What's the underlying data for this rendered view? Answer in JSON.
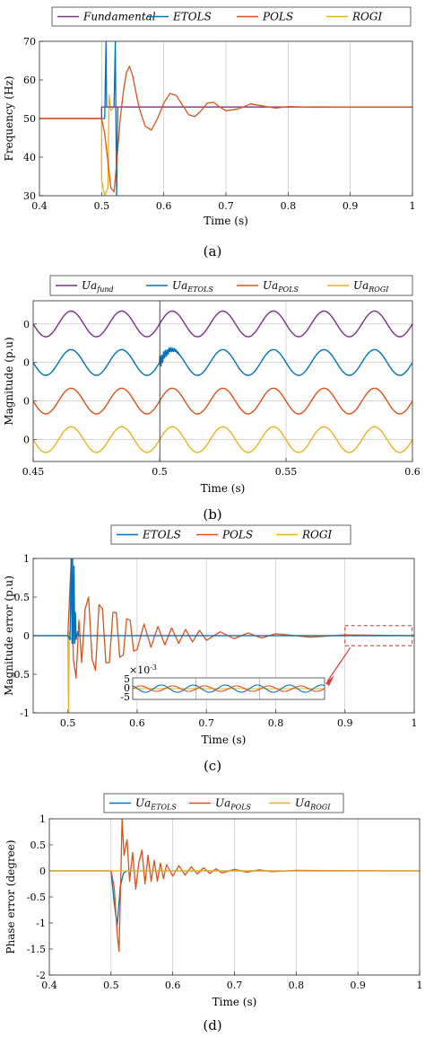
{
  "chart_data": [
    {
      "id": "a",
      "type": "line",
      "caption": "(a)",
      "xlabel": "Time (s)",
      "ylabel": "Frequency (Hz)",
      "xlim": [
        0.4,
        1.0
      ],
      "ylim": [
        30,
        70
      ],
      "xticks": [
        "0.4",
        "0.5",
        "0.6",
        "0.7",
        "0.8",
        "0.9",
        "1"
      ],
      "yticks": [
        "30",
        "40",
        "50",
        "60",
        "70"
      ],
      "grid": true,
      "legend_position": "top",
      "series": [
        {
          "name": "Fundamental",
          "color": "#7e2f8e",
          "x": [
            0.4,
            0.5,
            0.5,
            1.0
          ],
          "y": [
            50,
            50,
            53,
            53
          ]
        },
        {
          "name": "ETOLS",
          "color": "#0072bd",
          "x": [
            0.4,
            0.505,
            0.507,
            0.508,
            0.515,
            0.52,
            0.522,
            0.524,
            0.526,
            0.53,
            1.0
          ],
          "y": [
            50,
            50,
            70,
            53,
            53,
            53,
            70,
            30,
            53,
            53,
            53
          ]
        },
        {
          "name": "POLS",
          "color": "#d95319",
          "x": [
            0.4,
            0.5,
            0.505,
            0.51,
            0.515,
            0.52,
            0.525,
            0.53,
            0.535,
            0.54,
            0.545,
            0.55,
            0.56,
            0.57,
            0.58,
            0.59,
            0.6,
            0.61,
            0.62,
            0.63,
            0.64,
            0.65,
            0.66,
            0.67,
            0.68,
            0.69,
            0.7,
            0.72,
            0.74,
            0.76,
            0.78,
            0.8,
            0.84,
            0.9,
            1.0
          ],
          "y": [
            50,
            50,
            46,
            39,
            32,
            31,
            40,
            50,
            57,
            62,
            63.5,
            61,
            53,
            48,
            47,
            50,
            54,
            56.5,
            56,
            53.5,
            51,
            50.5,
            52,
            54,
            54.2,
            53,
            52,
            52.5,
            53.8,
            53.2,
            52.7,
            53.1,
            52.9,
            53,
            53
          ]
        },
        {
          "name": "ROGI",
          "color": "#edb120",
          "x": [
            0.4,
            0.5,
            0.5,
            0.505,
            0.51,
            0.512,
            0.515,
            0.52,
            0.525,
            0.53,
            1.0
          ],
          "y": [
            50,
            50,
            34,
            30,
            32,
            56,
            52,
            53,
            53,
            53,
            53
          ]
        }
      ]
    },
    {
      "id": "b",
      "type": "line",
      "caption": "(b)",
      "xlabel": "Time (s)",
      "ylabel": "Magnitude (p.u)",
      "xlim": [
        0.45,
        0.6
      ],
      "xticks": [
        "0.45",
        "0.5",
        "0.55",
        "0.6"
      ],
      "yticks": [
        "0",
        "0",
        "0",
        "0"
      ],
      "grid": true,
      "legend_position": "top",
      "waveform": {
        "frequency_hz": 50,
        "amplitude": 1,
        "offsets": [
          7.5,
          4.5,
          1.5,
          -1.5
        ],
        "ylim": [
          -3.2,
          9.3
        ]
      },
      "series": [
        {
          "name": "Ua_fund",
          "legend_main": "Ua",
          "legend_sub": "fund",
          "color": "#7e2f8e"
        },
        {
          "name": "Ua_ETOLS",
          "legend_main": "Ua",
          "legend_sub": "ETOLS",
          "color": "#0072bd"
        },
        {
          "name": "Ua_POLS",
          "legend_main": "Ua",
          "legend_sub": "POLS",
          "color": "#d95319"
        },
        {
          "name": "Ua_ROGI",
          "legend_main": "Ua",
          "legend_sub": "ROGI",
          "color": "#edb120"
        }
      ]
    },
    {
      "id": "c",
      "type": "line",
      "caption": "(c)",
      "xlabel": "Time (s)",
      "ylabel": "Magnitude error (p.u)",
      "xlim": [
        0.45,
        1.0
      ],
      "ylim": [
        -1,
        1
      ],
      "xticks": [
        "0.5",
        "0.6",
        "0.7",
        "0.8",
        "0.9",
        "1"
      ],
      "yticks": [
        "-1",
        "-0.5",
        "0",
        "0.5",
        "1"
      ],
      "grid": true,
      "legend_position": "top",
      "series": [
        {
          "name": "ETOLS",
          "color": "#0072bd",
          "x": [
            0.45,
            0.5,
            0.503,
            0.505,
            0.506,
            0.507,
            0.508,
            0.509,
            0.51,
            0.511,
            0.512,
            0.514,
            0.516,
            1.0
          ],
          "y": [
            0,
            0,
            -0.05,
            1,
            -0.1,
            1,
            -0.1,
            0.9,
            -0.1,
            0.3,
            -0.05,
            0.05,
            0,
            0
          ]
        },
        {
          "name": "POLS",
          "color": "#d95319",
          "x": [
            0.45,
            0.5,
            0.505,
            0.508,
            0.512,
            0.516,
            0.52,
            0.525,
            0.53,
            0.535,
            0.54,
            0.545,
            0.55,
            0.555,
            0.56,
            0.565,
            0.57,
            0.575,
            0.58,
            0.585,
            0.59,
            0.595,
            0.6,
            0.61,
            0.62,
            0.63,
            0.64,
            0.65,
            0.66,
            0.67,
            0.68,
            0.69,
            0.7,
            0.72,
            0.74,
            0.76,
            0.78,
            0.8,
            0.85,
            0.9,
            1.0
          ],
          "y": [
            0,
            0,
            1,
            -0.3,
            -0.55,
            0.2,
            -0.35,
            0.35,
            0.5,
            -0.3,
            -0.45,
            0.4,
            0.35,
            -0.35,
            -0.35,
            0.3,
            0.3,
            -0.28,
            -0.25,
            0.22,
            0.2,
            -0.2,
            -0.18,
            0.15,
            -0.15,
            0.12,
            -0.12,
            0.1,
            -0.1,
            0.08,
            -0.08,
            0.07,
            -0.06,
            0.05,
            -0.04,
            0.035,
            -0.03,
            0.025,
            -0.02,
            0.01,
            0
          ]
        },
        {
          "name": "ROGI",
          "color": "#edb120",
          "x": [
            0.45,
            0.5,
            0.501,
            0.502,
            0.504,
            0.508,
            1.0
          ],
          "y": [
            0,
            0,
            -1,
            0.05,
            -0.05,
            0,
            0
          ]
        }
      ],
      "inset": {
        "multiplier": "×10",
        "exponent": "-3",
        "yticks": [
          "5",
          "0",
          "-5"
        ],
        "ylim": [
          -6,
          6
        ],
        "amplitude_pols": 1.5,
        "amplitude_etols": 2,
        "cycles": 6
      }
    },
    {
      "id": "d",
      "type": "line",
      "caption": "(d)",
      "xlabel": "Time (s)",
      "ylabel": "Phase error (degree)",
      "xlim": [
        0.4,
        1.0
      ],
      "ylim": [
        -2,
        1
      ],
      "xticks": [
        "0.4",
        "0.5",
        "0.6",
        "0.7",
        "0.8",
        "0.9",
        "1"
      ],
      "yticks": [
        "-2",
        "-1.5",
        "-1",
        "-0.5",
        "0",
        "0.5",
        "1"
      ],
      "grid": true,
      "legend_position": "top",
      "series": [
        {
          "name": "Ua_ETOLS",
          "legend_main": "Ua",
          "legend_sub": "ETOLS",
          "color": "#0072bd",
          "x": [
            0.4,
            0.5,
            0.505,
            0.51,
            0.515,
            0.52,
            0.525,
            1.0
          ],
          "y": [
            0,
            0,
            -0.6,
            -1.05,
            -0.3,
            -0.05,
            0,
            0
          ]
        },
        {
          "name": "Ua_POLS",
          "legend_main": "Ua",
          "legend_sub": "POLS",
          "color": "#d95319",
          "x": [
            0.4,
            0.5,
            0.505,
            0.51,
            0.513,
            0.518,
            0.521,
            0.526,
            0.53,
            0.535,
            0.54,
            0.545,
            0.55,
            0.555,
            0.56,
            0.565,
            0.57,
            0.575,
            0.58,
            0.585,
            0.59,
            0.6,
            0.61,
            0.62,
            0.63,
            0.64,
            0.65,
            0.66,
            0.67,
            0.68,
            0.7,
            0.72,
            0.74,
            0.76,
            0.8,
            0.85,
            1.0
          ],
          "y": [
            0,
            0,
            -0.3,
            -1.2,
            -1.55,
            1.0,
            0.3,
            0.6,
            -0.2,
            0.35,
            -0.35,
            0.15,
            0.4,
            -0.25,
            0.3,
            -0.2,
            0.2,
            -0.2,
            0.15,
            -0.15,
            0.12,
            -0.1,
            0.1,
            -0.08,
            0.08,
            -0.06,
            0.06,
            -0.05,
            0.04,
            -0.04,
            0.03,
            -0.025,
            0.02,
            -0.015,
            0.01,
            0.005,
            0
          ]
        },
        {
          "name": "Ua_ROGI",
          "legend_main": "Ua",
          "legend_sub": "ROGI",
          "color": "#edb120",
          "x": [
            0.4,
            1.0
          ],
          "y": [
            0,
            0
          ]
        }
      ]
    }
  ]
}
